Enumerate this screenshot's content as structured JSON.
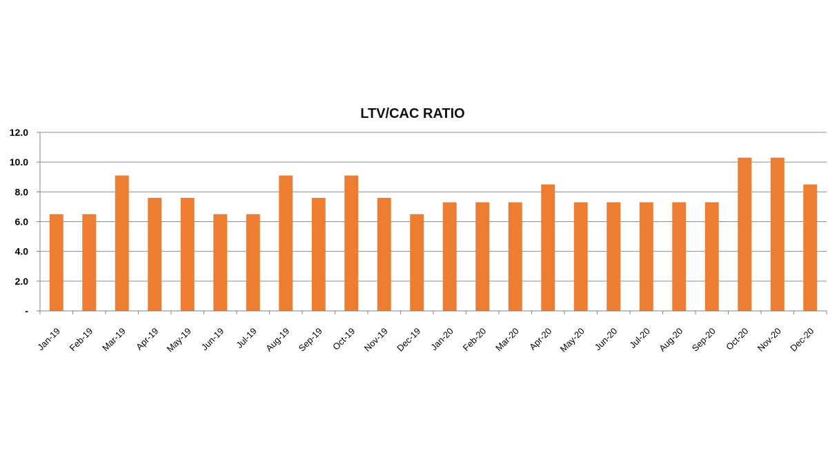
{
  "chart_data": {
    "type": "bar",
    "title": "LTV/CAC RATIO",
    "xlabel": "",
    "ylabel": "",
    "ylim": [
      0,
      12
    ],
    "yticks": [
      0,
      2,
      4,
      6,
      8,
      10,
      12
    ],
    "ytick_labels": [
      "-",
      "2.0",
      "4.0",
      "6.0",
      "8.0",
      "10.0",
      "12.0"
    ],
    "grid": "horizontal",
    "legend": "none",
    "bar_color": "#ED7D31",
    "categories": [
      "Jan-19",
      "Feb-19",
      "Mar-19",
      "Apr-19",
      "May-19",
      "Jun-19",
      "Jul-19",
      "Aug-19",
      "Sep-19",
      "Oct-19",
      "Nov-19",
      "Dec-19",
      "Jan-20",
      "Feb-20",
      "Mar-20",
      "Apr-20",
      "May-20",
      "Jun-20",
      "Jul-20",
      "Aug-20",
      "Sep-20",
      "Oct-20",
      "Nov-20",
      "Dec-20"
    ],
    "values": [
      6.5,
      6.5,
      9.1,
      7.6,
      7.6,
      6.5,
      6.5,
      9.1,
      7.6,
      9.1,
      7.6,
      6.5,
      7.3,
      7.3,
      7.3,
      8.5,
      7.3,
      7.3,
      7.3,
      7.3,
      7.3,
      10.3,
      10.3,
      8.5
    ]
  }
}
